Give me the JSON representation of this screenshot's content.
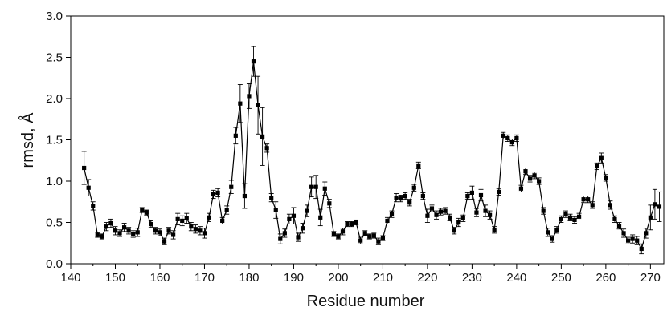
{
  "chart_data": {
    "type": "line",
    "xlabel": "Residue number",
    "ylabel": "rmsd, Å",
    "xlim": [
      140,
      273
    ],
    "ylim": [
      0.0,
      3.0
    ],
    "x_ticks": [
      140,
      150,
      160,
      170,
      180,
      190,
      200,
      210,
      220,
      230,
      240,
      250,
      260,
      270
    ],
    "x_tick_labels": [
      "140",
      "150",
      "160",
      "170",
      "180",
      "190",
      "200",
      "210",
      "220",
      "230",
      "240",
      "250",
      "260",
      "270"
    ],
    "y_ticks": [
      0.0,
      0.5,
      1.0,
      1.5,
      2.0,
      2.5,
      3.0
    ],
    "y_tick_labels": [
      "0.0",
      "0.5",
      "1.0",
      "1.5",
      "2.0",
      "2.5",
      "3.0"
    ],
    "grid": false,
    "line_color": "#000000",
    "marker": "square",
    "series": [
      {
        "x": [
          143,
          144,
          145,
          146,
          147,
          148,
          149,
          150,
          151,
          152,
          153,
          154,
          155,
          156,
          157,
          158,
          159,
          160,
          161,
          162,
          163,
          164,
          165,
          166,
          167,
          168,
          169,
          170,
          171,
          172,
          173,
          174,
          175,
          176,
          177,
          178,
          179,
          180,
          181,
          182,
          183,
          184,
          185,
          186,
          187,
          188,
          189,
          190,
          191,
          192,
          193,
          194,
          195,
          196,
          197,
          198,
          199,
          200,
          201,
          202,
          203,
          204,
          205,
          206,
          207,
          208,
          209,
          210,
          211,
          212,
          213,
          214,
          215,
          216,
          217,
          218,
          219,
          220,
          221,
          222,
          223,
          224,
          225,
          226,
          227,
          228,
          229,
          230,
          231,
          232,
          233,
          234,
          235,
          236,
          237,
          238,
          239,
          240,
          241,
          242,
          243,
          244,
          245,
          246,
          247,
          248,
          249,
          250,
          251,
          252,
          253,
          254,
          255,
          256,
          257,
          258,
          259,
          260,
          261,
          262,
          263,
          264,
          265,
          266,
          267,
          268,
          269,
          270,
          271,
          272
        ],
        "y": [
          1.16,
          0.92,
          0.7,
          0.35,
          0.33,
          0.45,
          0.49,
          0.4,
          0.37,
          0.44,
          0.4,
          0.36,
          0.38,
          0.65,
          0.62,
          0.48,
          0.4,
          0.38,
          0.27,
          0.4,
          0.35,
          0.54,
          0.52,
          0.55,
          0.45,
          0.42,
          0.4,
          0.37,
          0.56,
          0.84,
          0.86,
          0.52,
          0.65,
          0.93,
          1.55,
          1.94,
          0.82,
          2.03,
          2.45,
          1.92,
          1.54,
          1.4,
          0.8,
          0.65,
          0.3,
          0.37,
          0.54,
          0.58,
          0.32,
          0.43,
          0.64,
          0.93,
          0.93,
          0.56,
          0.91,
          0.73,
          0.36,
          0.33,
          0.39,
          0.48,
          0.48,
          0.5,
          0.28,
          0.37,
          0.33,
          0.34,
          0.27,
          0.31,
          0.52,
          0.6,
          0.8,
          0.79,
          0.82,
          0.74,
          0.92,
          1.19,
          0.82,
          0.58,
          0.67,
          0.59,
          0.63,
          0.64,
          0.56,
          0.4,
          0.5,
          0.55,
          0.82,
          0.86,
          0.62,
          0.83,
          0.64,
          0.59,
          0.41,
          0.87,
          1.55,
          1.52,
          1.47,
          1.52,
          0.91,
          1.12,
          1.03,
          1.07,
          1.0,
          0.64,
          0.38,
          0.3,
          0.41,
          0.54,
          0.6,
          0.56,
          0.53,
          0.57,
          0.78,
          0.78,
          0.71,
          1.18,
          1.28,
          1.04,
          0.71,
          0.54,
          0.46,
          0.37,
          0.28,
          0.3,
          0.28,
          0.18,
          0.37,
          0.56,
          0.72,
          0.69
        ],
        "err": [
          0.2,
          0.1,
          0.05,
          0.03,
          0.03,
          0.05,
          0.05,
          0.05,
          0.04,
          0.05,
          0.04,
          0.04,
          0.05,
          0.03,
          0.03,
          0.04,
          0.04,
          0.04,
          0.04,
          0.04,
          0.05,
          0.07,
          0.06,
          0.06,
          0.05,
          0.05,
          0.05,
          0.06,
          0.05,
          0.05,
          0.05,
          0.04,
          0.05,
          0.08,
          0.1,
          0.23,
          0.15,
          0.15,
          0.18,
          0.35,
          0.35,
          0.05,
          0.05,
          0.1,
          0.06,
          0.05,
          0.06,
          0.1,
          0.05,
          0.06,
          0.07,
          0.12,
          0.14,
          0.1,
          0.08,
          0.05,
          0.03,
          0.03,
          0.04,
          0.03,
          0.03,
          0.03,
          0.04,
          0.03,
          0.03,
          0.03,
          0.04,
          0.03,
          0.04,
          0.04,
          0.05,
          0.04,
          0.04,
          0.04,
          0.04,
          0.04,
          0.04,
          0.08,
          0.04,
          0.05,
          0.04,
          0.04,
          0.04,
          0.04,
          0.05,
          0.04,
          0.04,
          0.08,
          0.05,
          0.07,
          0.07,
          0.05,
          0.04,
          0.04,
          0.04,
          0.04,
          0.04,
          0.04,
          0.04,
          0.04,
          0.04,
          0.04,
          0.04,
          0.04,
          0.05,
          0.04,
          0.04,
          0.04,
          0.04,
          0.04,
          0.04,
          0.04,
          0.04,
          0.04,
          0.04,
          0.04,
          0.06,
          0.04,
          0.05,
          0.04,
          0.04,
          0.05,
          0.04,
          0.05,
          0.05,
          0.06,
          0.06,
          0.15,
          0.18,
          0.18
        ]
      }
    ]
  }
}
